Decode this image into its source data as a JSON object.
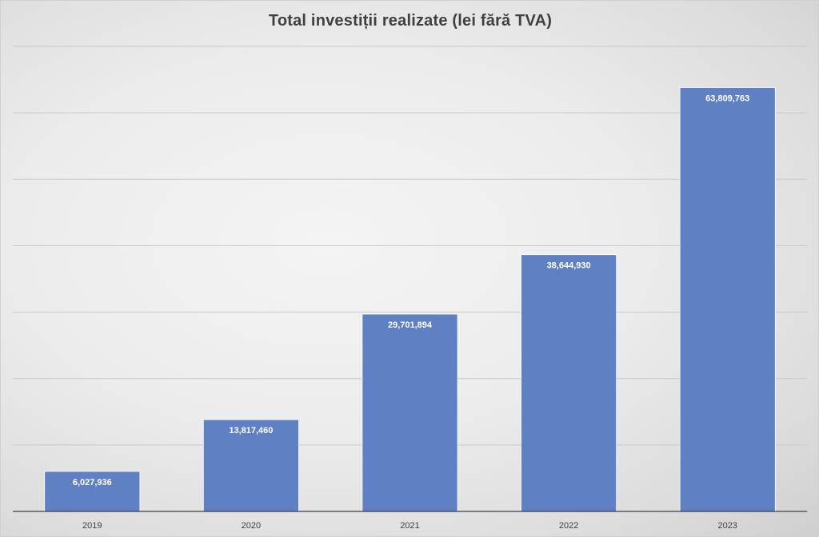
{
  "chart_data": {
    "type": "bar",
    "title": "Total investiții realizate (lei fără TVA)",
    "xlabel": "",
    "ylabel": "",
    "categories": [
      "2019",
      "2020",
      "2021",
      "2022",
      "2023"
    ],
    "values": [
      6027936,
      13817460,
      29701894,
      38644930,
      63809763
    ],
    "data_labels": [
      "6,027,936",
      "13,817,460",
      "29,701,894",
      "38,644,930",
      "63,809,763"
    ],
    "ylim": [
      0,
      70000000
    ],
    "y_gridline_step": 10000000,
    "grid": true,
    "legend": "none",
    "bar_color": "#6080c4",
    "gridline_color": "#c8c8c8",
    "axis_color": "#404040"
  }
}
